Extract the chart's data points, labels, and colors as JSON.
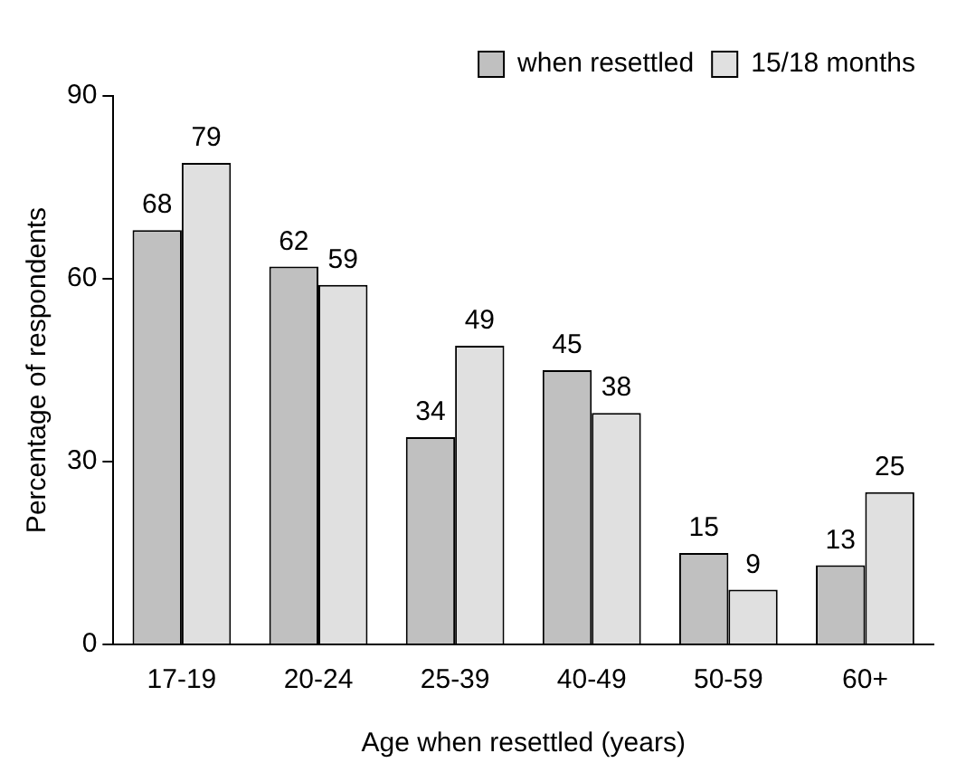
{
  "chart_data": {
    "type": "bar",
    "xlabel": "Age when resettled (years)",
    "ylabel": "Percentage of respondents",
    "categories": [
      "17-19",
      "20-24",
      "25-39",
      "40-49",
      "50-59",
      "60+"
    ],
    "series": [
      {
        "name": "when resettled",
        "color": "#c0c0c0",
        "values": [
          68,
          62,
          34,
          45,
          15,
          13
        ]
      },
      {
        "name": "15/18 months",
        "color": "#e0e0e0",
        "values": [
          79,
          59,
          49,
          38,
          9,
          25
        ]
      }
    ],
    "ylim": [
      0,
      90
    ],
    "yticks": [
      0,
      30,
      60,
      90
    ],
    "grid": false,
    "legend": "top right",
    "data_labels": true
  }
}
